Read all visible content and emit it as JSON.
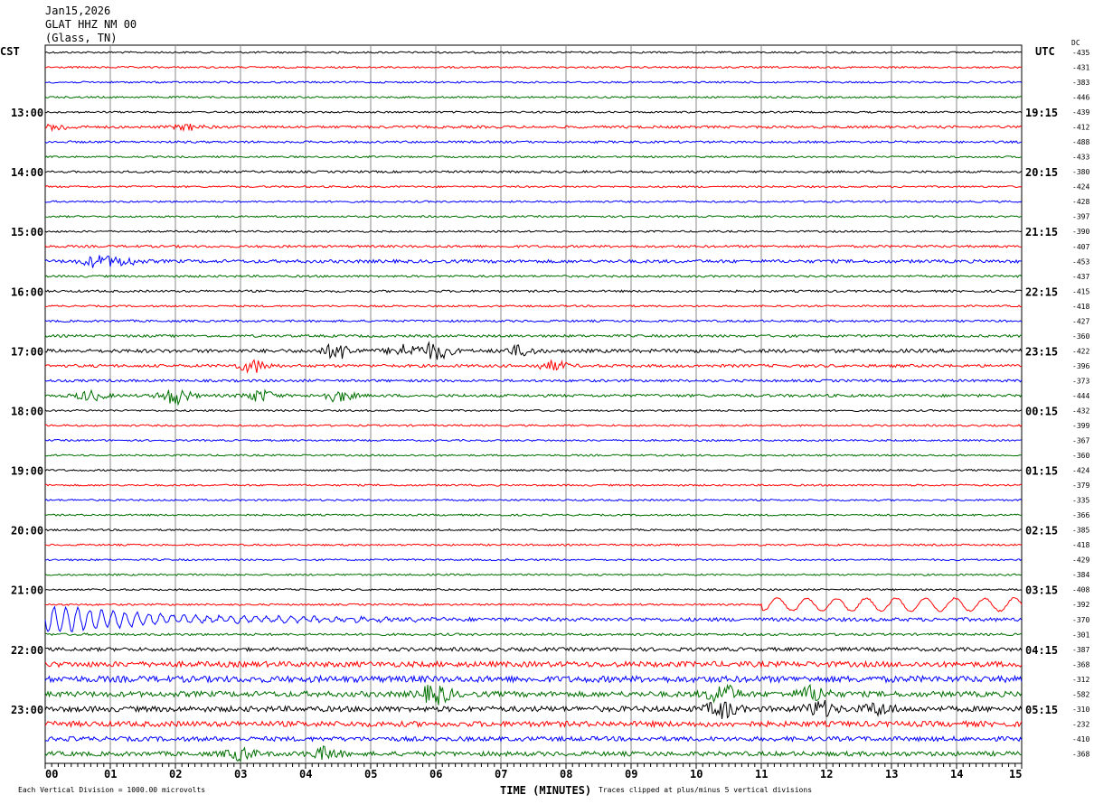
{
  "header": {
    "date": "Jan15,2026",
    "station": "GLAT HHZ NM 00",
    "location": "(Glass, TN)"
  },
  "chart_data": {
    "type": "line",
    "title": "",
    "left_timezone": "CST",
    "right_timezone": "UTC",
    "dc_label": "DC",
    "xlabel": "TIME (MINUTES)",
    "xlim": [
      0,
      15
    ],
    "x_ticks": [
      "00",
      "01",
      "02",
      "03",
      "04",
      "05",
      "06",
      "07",
      "08",
      "09",
      "10",
      "11",
      "12",
      "13",
      "14",
      "15"
    ],
    "trace_colors": [
      "#000000",
      "#ff0000",
      "#0000ff",
      "#007000"
    ],
    "left_labels": [
      {
        "row": 4,
        "text": "13:00"
      },
      {
        "row": 8,
        "text": "14:00"
      },
      {
        "row": 12,
        "text": "15:00"
      },
      {
        "row": 16,
        "text": "16:00"
      },
      {
        "row": 20,
        "text": "17:00"
      },
      {
        "row": 24,
        "text": "18:00"
      },
      {
        "row": 28,
        "text": "19:00"
      },
      {
        "row": 32,
        "text": "20:00"
      },
      {
        "row": 36,
        "text": "21:00"
      },
      {
        "row": 40,
        "text": "22:00"
      },
      {
        "row": 44,
        "text": "23:00"
      }
    ],
    "right_labels": [
      {
        "row": 4,
        "text": "19:15"
      },
      {
        "row": 8,
        "text": "20:15"
      },
      {
        "row": 12,
        "text": "21:15"
      },
      {
        "row": 16,
        "text": "22:15"
      },
      {
        "row": 20,
        "text": "23:15"
      },
      {
        "row": 24,
        "text": "00:15"
      },
      {
        "row": 28,
        "text": "01:15"
      },
      {
        "row": 32,
        "text": "02:15"
      },
      {
        "row": 36,
        "text": "03:15"
      },
      {
        "row": 40,
        "text": "04:15"
      },
      {
        "row": 44,
        "text": "05:15"
      }
    ],
    "dc_offsets": [
      "-435",
      "-431",
      "-383",
      "-446",
      "-439",
      "-412",
      "-488",
      "-433",
      "-380",
      "-424",
      "-428",
      "-397",
      "-390",
      "-407",
      "-453",
      "-437",
      "-415",
      "-418",
      "-427",
      "-360",
      "-422",
      "-396",
      "-373",
      "-444",
      "-432",
      "-399",
      "-367",
      "-360",
      "-424",
      "-379",
      "-335",
      "-366",
      "-385",
      "-418",
      "-429",
      "-384",
      "-408",
      "-392",
      "-370",
      "-301",
      "-387",
      "-368",
      "-312",
      "-582",
      "-310",
      "-232",
      "-410",
      "-368"
    ],
    "scale_note": "Each Vertical Division = 1000.00 microvolts",
    "clip_note": "Traces clipped at plus/minus 5 vertical divisions"
  }
}
